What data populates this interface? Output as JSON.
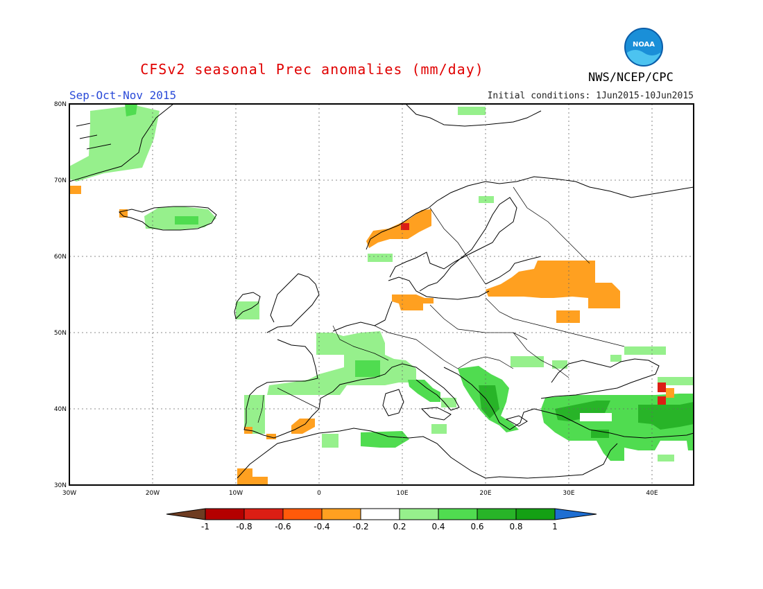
{
  "header": {
    "title": "CFSv2 seasonal Prec anomalies (mm/day)",
    "period": "Sep-Oct-Nov 2015",
    "initial_conditions": "Initial conditions: 1Jun2015-10Jun2015",
    "agency": "NWS/NCEP/CPC",
    "logo_text": "NOAA"
  },
  "map": {
    "lat_labels": [
      "80N",
      "70N",
      "60N",
      "50N",
      "40N",
      "30N"
    ],
    "lon_labels": [
      "30W",
      "20W",
      "10W",
      "0",
      "10E",
      "20E",
      "30E",
      "40E"
    ],
    "extent": {
      "lon_min": -30,
      "lon_max": 45,
      "lat_min": 30,
      "lat_max": 80
    }
  },
  "legend": {
    "ticks": [
      "-1",
      "-0.8",
      "-0.6",
      "-0.4",
      "-0.2",
      "0.2",
      "0.4",
      "0.6",
      "0.8",
      "1"
    ],
    "colors": [
      "#6e3c22",
      "#b40000",
      "#dc1e14",
      "#ff5a0a",
      "#ffa020",
      "#ffffff",
      "#96f08c",
      "#50dc50",
      "#28b428",
      "#14a014",
      "#1e6ed2"
    ]
  },
  "colors": {
    "green_light": "#96f08c",
    "green_mid": "#50dc50",
    "orange": "#ffa020",
    "red": "#dc1e14"
  }
}
